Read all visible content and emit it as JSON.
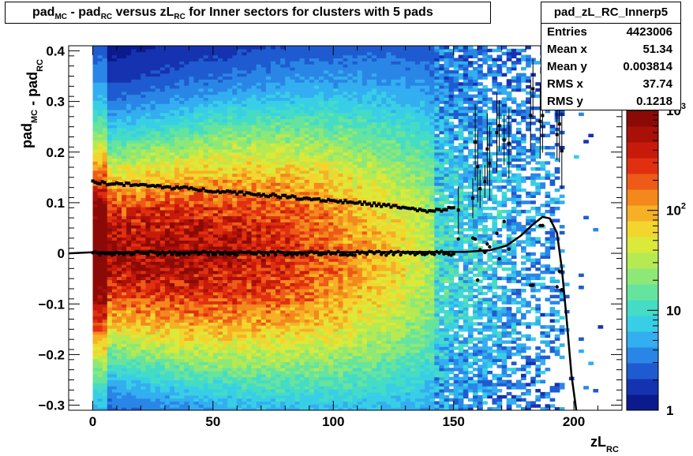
{
  "title": {
    "parts": [
      {
        "t": "pad",
        "sub": "MC"
      },
      {
        "t": " - pad",
        "sub": "RC"
      },
      {
        "t": " versus zL",
        "sub": "RC"
      },
      {
        "t": " for Inner sectors for clusters with 5 pads",
        "sub": ""
      }
    ]
  },
  "stats": {
    "name": "pad_zL_RC_Innerp5",
    "rows": [
      {
        "k": "Entries",
        "v": "4423006"
      },
      {
        "k": "Mean x",
        "v": "51.34"
      },
      {
        "k": "Mean y",
        "v": "0.003814"
      },
      {
        "k": "RMS x",
        "v": "37.74"
      },
      {
        "k": "RMS y",
        "v": "0.1218"
      }
    ]
  },
  "chart_data": {
    "type": "heatmap",
    "xlabel": {
      "main": "zL",
      "sub": "RC"
    },
    "ylabel": {
      "parts": [
        {
          "t": "pad",
          "sub": "MC"
        },
        {
          "t": " - pad",
          "sub": "RC"
        }
      ]
    },
    "xlim": [
      -10,
      220
    ],
    "ylim": [
      -0.31,
      0.41
    ],
    "x_ticks": [
      0,
      50,
      100,
      150,
      200
    ],
    "x_tick_labels": [
      "0",
      "50",
      "100",
      "150",
      "200"
    ],
    "y_ticks": [
      -0.3,
      -0.2,
      -0.1,
      0,
      0.1,
      0.2,
      0.3,
      0.4
    ],
    "y_tick_labels": [
      "−0.3",
      "−0.2",
      "−0.1",
      "0",
      "0.1",
      "0.2",
      "0.3",
      "0.4"
    ],
    "z_scale": "log",
    "z_range": [
      1,
      1000
    ],
    "z_ticks": [
      1,
      10,
      100,
      1000
    ],
    "z_tick_labels": [
      "1",
      "10",
      "10^2",
      "10^3"
    ],
    "palette": [
      "#0b1a8c",
      "#1533b0",
      "#1f5bd0",
      "#2a86e6",
      "#33aef0",
      "#38cfe6",
      "#45dcc6",
      "#66e39e",
      "#8ee877",
      "#b6ea52",
      "#dbe93a",
      "#f2d62e",
      "#f6b025",
      "#f3881d",
      "#ee5a17",
      "#e03010",
      "#c81a0a",
      "#a81008",
      "#8c0a06"
    ],
    "profile_markers": "filled squares (mean |y|)",
    "profile_means": [
      {
        "x": 0,
        "y": 0.14
      },
      {
        "x": 25,
        "y": 0.133
      },
      {
        "x": 50,
        "y": 0.124
      },
      {
        "x": 75,
        "y": 0.114
      },
      {
        "x": 100,
        "y": 0.104
      },
      {
        "x": 125,
        "y": 0.093
      },
      {
        "x": 140,
        "y": 0.082
      },
      {
        "x": 150,
        "y": 0.09
      },
      {
        "x": 160,
        "y": 0.17
      },
      {
        "x": 170,
        "y": 0.23
      },
      {
        "x": 180,
        "y": 0.3
      },
      {
        "x": 190,
        "y": 0.25
      }
    ],
    "fit_curve": [
      {
        "x": -10,
        "y": 0
      },
      {
        "x": 0,
        "y": 0.002
      },
      {
        "x": 50,
        "y": 0.002
      },
      {
        "x": 100,
        "y": 0.002
      },
      {
        "x": 140,
        "y": 0.003
      },
      {
        "x": 155,
        "y": 0.003
      },
      {
        "x": 165,
        "y": 0.006
      },
      {
        "x": 172,
        "y": 0.015
      },
      {
        "x": 178,
        "y": 0.035
      },
      {
        "x": 183,
        "y": 0.057
      },
      {
        "x": 187,
        "y": 0.072
      },
      {
        "x": 190,
        "y": 0.069
      },
      {
        "x": 193,
        "y": 0.04
      },
      {
        "x": 195,
        "y": -0.03
      },
      {
        "x": 197,
        "y": -0.13
      },
      {
        "x": 199,
        "y": -0.24
      },
      {
        "x": 201,
        "y": -0.31
      }
    ]
  }
}
